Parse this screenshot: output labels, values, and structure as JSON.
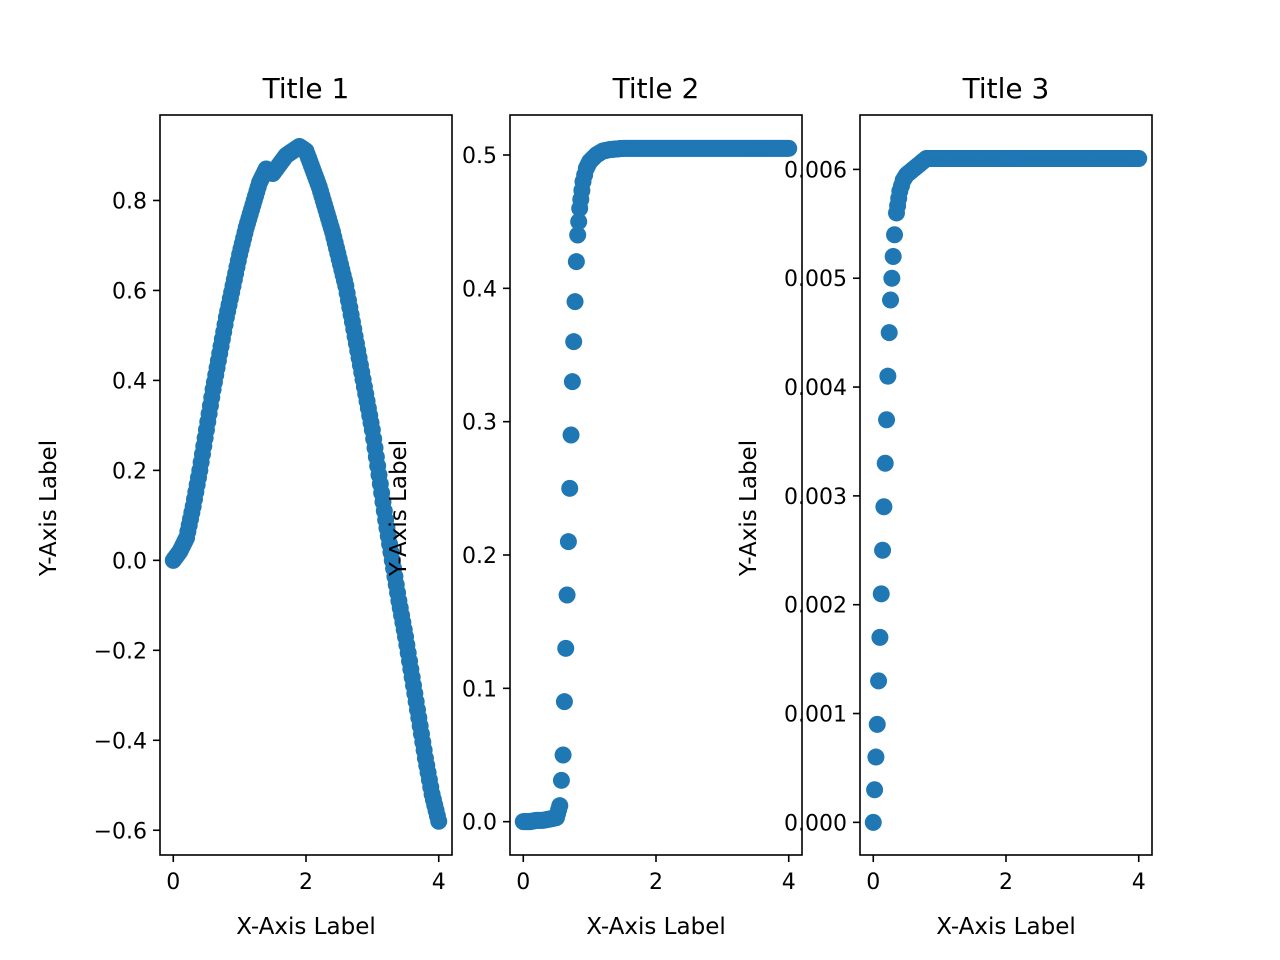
{
  "colors": {
    "marker": "#1f77b4",
    "axes": "#000000",
    "background": "#ffffff"
  },
  "chart_data": [
    {
      "type": "scatter",
      "title": "Title 1",
      "xlabel": "X-Axis Label",
      "ylabel": "Y-Axis Label",
      "xlim": [
        -0.2,
        4.2
      ],
      "ylim": [
        -0.655,
        0.99
      ],
      "xticks": [
        0,
        2,
        4
      ],
      "xtick_labels": [
        "0",
        "2",
        "4"
      ],
      "yticks": [
        -0.6,
        -0.4,
        -0.2,
        0.0,
        0.2,
        0.4,
        0.6,
        0.8
      ],
      "ytick_labels": [
        "−0.6",
        "−0.4",
        "−0.2",
        "0.0",
        "0.2",
        "0.4",
        "0.6",
        "0.8"
      ],
      "grid": false,
      "series": [
        {
          "x": [
            0.0,
            0.1,
            0.2,
            0.3,
            0.4,
            0.5,
            0.6,
            0.7,
            0.8,
            0.9,
            1.0,
            1.1,
            1.2,
            1.3,
            1.4,
            1.5,
            1.6,
            1.7,
            1.8,
            1.9,
            2.0,
            2.1,
            2.2,
            2.3,
            2.4,
            2.5,
            2.6,
            2.7,
            2.8,
            2.9,
            3.0,
            3.1,
            3.2,
            3.3,
            3.4,
            3.5,
            3.6,
            3.7,
            3.8,
            3.9,
            4.0
          ],
          "y": [
            0.0,
            0.02,
            0.05,
            0.12,
            0.2,
            0.29,
            0.38,
            0.46,
            0.54,
            0.61,
            0.68,
            0.74,
            0.79,
            0.84,
            0.87,
            0.86,
            0.88,
            0.9,
            0.91,
            0.92,
            0.91,
            0.87,
            0.83,
            0.78,
            0.73,
            0.67,
            0.61,
            0.53,
            0.45,
            0.37,
            0.29,
            0.19,
            0.09,
            0.0,
            -0.09,
            -0.17,
            -0.26,
            -0.35,
            -0.44,
            -0.52,
            -0.58
          ]
        }
      ]
    },
    {
      "type": "scatter",
      "title": "Title 2",
      "xlabel": "X-Axis Label",
      "ylabel": "Y-Axis Label",
      "xlim": [
        -0.2,
        4.2
      ],
      "ylim": [
        -0.025,
        0.53
      ],
      "xticks": [
        0,
        2,
        4
      ],
      "xtick_labels": [
        "0",
        "2",
        "4"
      ],
      "yticks": [
        0.0,
        0.1,
        0.2,
        0.3,
        0.4,
        0.5
      ],
      "ytick_labels": [
        "0.0",
        "0.1",
        "0.2",
        "0.3",
        "0.4",
        "0.5"
      ],
      "grid": false,
      "series": [
        {
          "x": [
            0.0,
            0.1,
            0.2,
            0.3,
            0.4,
            0.5,
            0.55,
            0.6,
            0.62,
            0.64,
            0.66,
            0.68,
            0.7,
            0.72,
            0.74,
            0.76,
            0.78,
            0.8,
            0.82,
            0.85,
            0.9,
            0.95,
            1.0,
            1.1,
            1.2,
            1.3,
            1.5,
            1.7,
            2.0,
            2.5,
            3.0,
            3.5,
            4.0
          ],
          "y": [
            0.0,
            0.0,
            0.001,
            0.001,
            0.002,
            0.003,
            0.012,
            0.05,
            0.09,
            0.13,
            0.17,
            0.21,
            0.25,
            0.29,
            0.33,
            0.36,
            0.39,
            0.42,
            0.44,
            0.46,
            0.48,
            0.49,
            0.495,
            0.5,
            0.503,
            0.504,
            0.505,
            0.505,
            0.505,
            0.505,
            0.505,
            0.505,
            0.505
          ]
        }
      ]
    },
    {
      "type": "scatter",
      "title": "Title 3",
      "xlabel": "X-Axis Label",
      "ylabel": "Y-Axis Label",
      "xlim": [
        -0.2,
        4.2
      ],
      "ylim": [
        -0.0003,
        0.0065
      ],
      "xticks": [
        0,
        2,
        4
      ],
      "xtick_labels": [
        "0",
        "2",
        "4"
      ],
      "yticks": [
        0.0,
        0.001,
        0.002,
        0.003,
        0.004,
        0.005,
        0.006
      ],
      "ytick_labels": [
        "0.000",
        "0.001",
        "0.002",
        "0.003",
        "0.004",
        "0.005",
        "0.006"
      ],
      "grid": false,
      "series": [
        {
          "x": [
            0.0,
            0.02,
            0.04,
            0.06,
            0.08,
            0.1,
            0.12,
            0.14,
            0.16,
            0.18,
            0.2,
            0.22,
            0.24,
            0.26,
            0.28,
            0.3,
            0.32,
            0.35,
            0.4,
            0.45,
            0.5,
            0.6,
            0.7,
            0.8,
            1.0,
            1.2,
            1.5,
            2.0,
            2.5,
            3.0,
            3.5,
            4.0
          ],
          "y": [
            0.0,
            0.0003,
            0.0006,
            0.0009,
            0.0013,
            0.0017,
            0.0021,
            0.0025,
            0.0029,
            0.0033,
            0.0037,
            0.0041,
            0.0045,
            0.0048,
            0.005,
            0.0052,
            0.0054,
            0.0056,
            0.0058,
            0.0059,
            0.00595,
            0.006,
            0.00605,
            0.0061,
            0.0061,
            0.0061,
            0.0061,
            0.0061,
            0.0061,
            0.0061,
            0.0061,
            0.0061
          ]
        }
      ]
    }
  ]
}
